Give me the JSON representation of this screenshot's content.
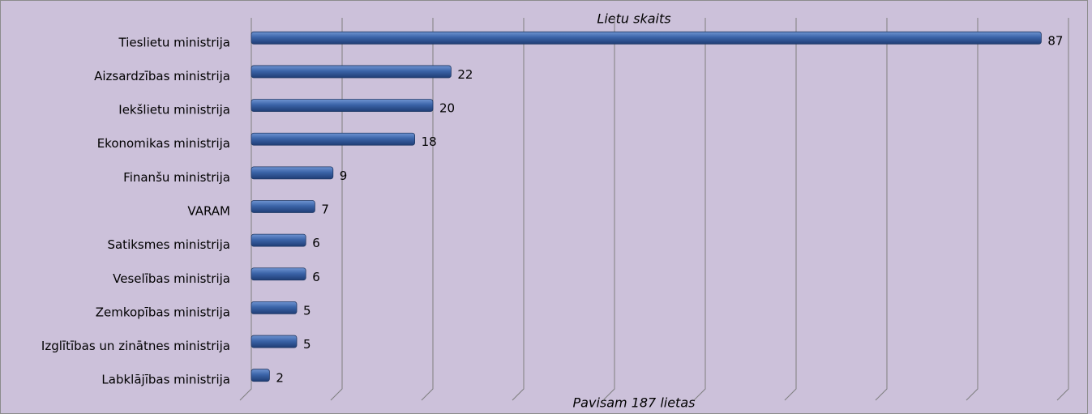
{
  "chart_data": {
    "type": "bar",
    "orientation": "horizontal",
    "title": "Lietu skaits",
    "subtitle": "Pavisam 187 lietas",
    "categories": [
      "Tieslietu ministrija",
      "Aizsardzības ministrija",
      "Iekšlietu ministrija",
      "Ekonomikas ministrija",
      "Finanšu ministrija",
      "VARAM",
      "Satiksmes ministrija",
      "Veselības ministrija",
      "Zemkopības ministrija",
      "Izglītības un zinātnes ministrija",
      "Labklājības ministrija"
    ],
    "values": [
      87,
      22,
      20,
      18,
      9,
      7,
      6,
      6,
      5,
      5,
      2
    ],
    "color": "#2f5597",
    "xlim": [
      0,
      90
    ],
    "xticks": [
      0,
      10,
      20,
      30,
      40,
      50,
      60,
      70,
      80,
      90
    ],
    "grid": true
  }
}
